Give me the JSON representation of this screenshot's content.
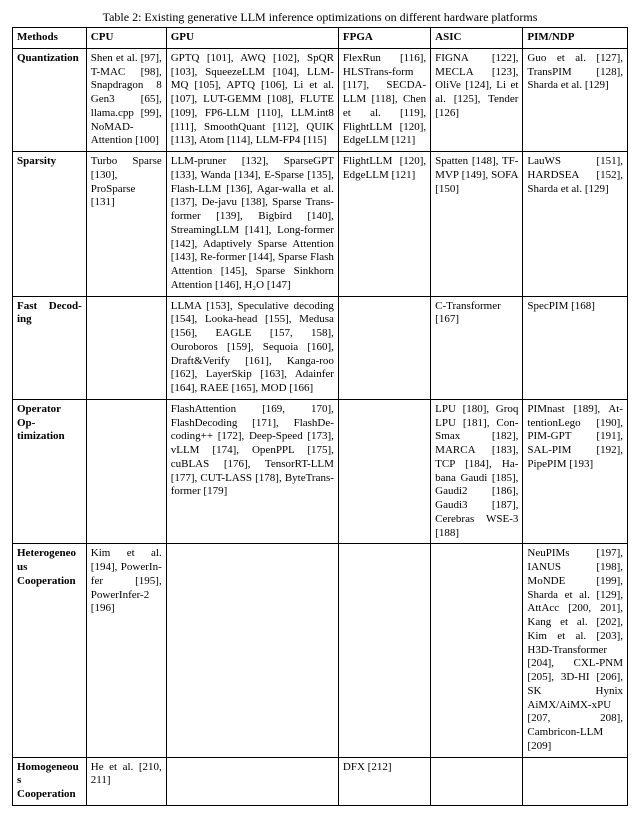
{
  "caption": "Table 2: Existing generative LLM inference optimizations on different hardware platforms",
  "headers": [
    "Methods",
    "CPU",
    "GPU",
    "FPGA",
    "ASIC",
    "PIM/NDP"
  ],
  "rows": [
    {
      "method": "Quantization",
      "cpu": "Shen et al. [97], T-MAC [98], Snapdragon 8 Gen3 [65], llama.cpp [99], NoMAD-Attention [100]",
      "gpu": "GPTQ [101], AWQ [102], SpQR [103], SqueezeLLM [104], LLM-MQ [105], APTQ [106], Li et al. [107], LUT-GEMM [108], FLUTE [109], FP6-LLM [110], LLM.int8 [111], SmoothQuant [112], QUIK [113], Atom [114], LLM-FP4 [115]",
      "fpga": "FlexRun [116], HLSTrans-form [117], SECDA-LLM [118], Chen et al. [119], FlightLLM [120], EdgeLLM [121]",
      "asic": "FIGNA [122], MECLA [123], OliVe [124], Li et al. [125], Tender [126]",
      "pim": "Guo et al. [127], TransPIM [128], Sharda et al. [129]"
    },
    {
      "method": "Sparsity",
      "cpu": "Turbo Sparse [130], ProSparse [131]",
      "gpu": "LLM-pruner [132], SparseGPT [133], Wanda [134], E-Sparse [135], Flash-LLM [136], Agar-walla et al. [137], De-javu [138], Sparse Trans-former [139], Bigbird [140], StreamingLLM [141], Long-former [142], Adaptively Sparse Attention [143], Re-former [144], Sparse Flash Attention [145], Sparse Sinkhorn Attention [146], H₂O [147]",
      "fpga": "FlightLLM [120], EdgeLLM [121]",
      "asic": "Spatten [148], TF-MVP [149], SOFA [150]",
      "pim": "LauWS [151], HARDSEA [152], Sharda et al. [129]"
    },
    {
      "method": "Fast Decod-ing",
      "cpu": "",
      "gpu": "LLMA [153], Speculative decoding [154], Looka-head [155], Medusa [156], EAGLE [157, 158], Ouroboros [159], Sequoia [160], Draft&Verify [161], Kanga-roo [162], LayerSkip [163], Adainfer [164], RAEE [165], MOD [166]",
      "fpga": "",
      "asic": "C-Transformer [167]",
      "pim": "SpecPIM [168]"
    },
    {
      "method": "Operator Op-timization",
      "cpu": "",
      "gpu": "FlashAttention [169, 170], FlashDecoding [171], FlashDe-coding++ [172], Deep-Speed [173], vLLM [174], OpenPPL [175], cuBLAS [176], TensorRT-LLM [177], CUT-LASS [178], ByteTrans-former [179]",
      "fpga": "",
      "asic": "LPU [180], Groq LPU [181], Con-Smax [182], MARCA [183], TCP [184], Ha-bana Gaudi [185], Gaudi2 [186], Gaudi3 [187], Cerebras WSE-3 [188]",
      "pim": "PIMnast [189], At-tentionLego [190], PIM-GPT [191], SAL-PIM [192], PipePIM [193]"
    },
    {
      "method": "Heterogeneous Cooperation",
      "cpu": "Kim et al. [194], PowerIn-fer [195], PowerInfer-2 [196]",
      "gpu": "",
      "fpga": "",
      "asic": "",
      "pim": "NeuPIMs [197], IANUS [198], MoNDE [199], Sharda et al. [129], AttAcc [200, 201], Kang et al. [202], Kim et al. [203], H3D-Transformer [204], CXL-PNM [205], 3D-HI [206], SK Hynix AiMX/AiMX-xPU [207, 208], Cambricon-LLM [209]"
    },
    {
      "method": "Homogeneous Cooperation",
      "cpu": "He et al. [210, 211]",
      "gpu": "",
      "fpga": "DFX [212]",
      "asic": "",
      "pim": ""
    }
  ]
}
